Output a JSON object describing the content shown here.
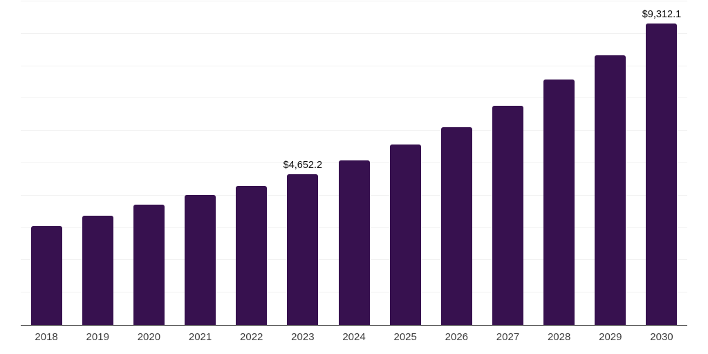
{
  "chart_data": {
    "type": "bar",
    "title": "",
    "xlabel": "",
    "ylabel": "",
    "categories": [
      "2018",
      "2019",
      "2020",
      "2021",
      "2022",
      "2023",
      "2024",
      "2025",
      "2026",
      "2027",
      "2028",
      "2029",
      "2030"
    ],
    "values": [
      3050,
      3380,
      3710,
      4020,
      4300,
      4652.2,
      5080,
      5580,
      6120,
      6780,
      7580,
      8340,
      9312.1
    ],
    "data_labels": [
      "",
      "",
      "",
      "",
      "",
      "$4,652.2",
      "",
      "",
      "",
      "",
      "",
      "",
      "$9,312.1"
    ],
    "ylim": [
      0,
      10000
    ],
    "gridline_step": 1000,
    "grid": true,
    "legend": false,
    "y_tick_labels_visible": false,
    "colors": {
      "bar": "#37114f",
      "gridline": "#f1f1f1",
      "axis_line": "#3d3d3d",
      "tick_label": "#3d3d3d",
      "data_label": "#0d0d0d",
      "background": "#ffffff"
    }
  }
}
